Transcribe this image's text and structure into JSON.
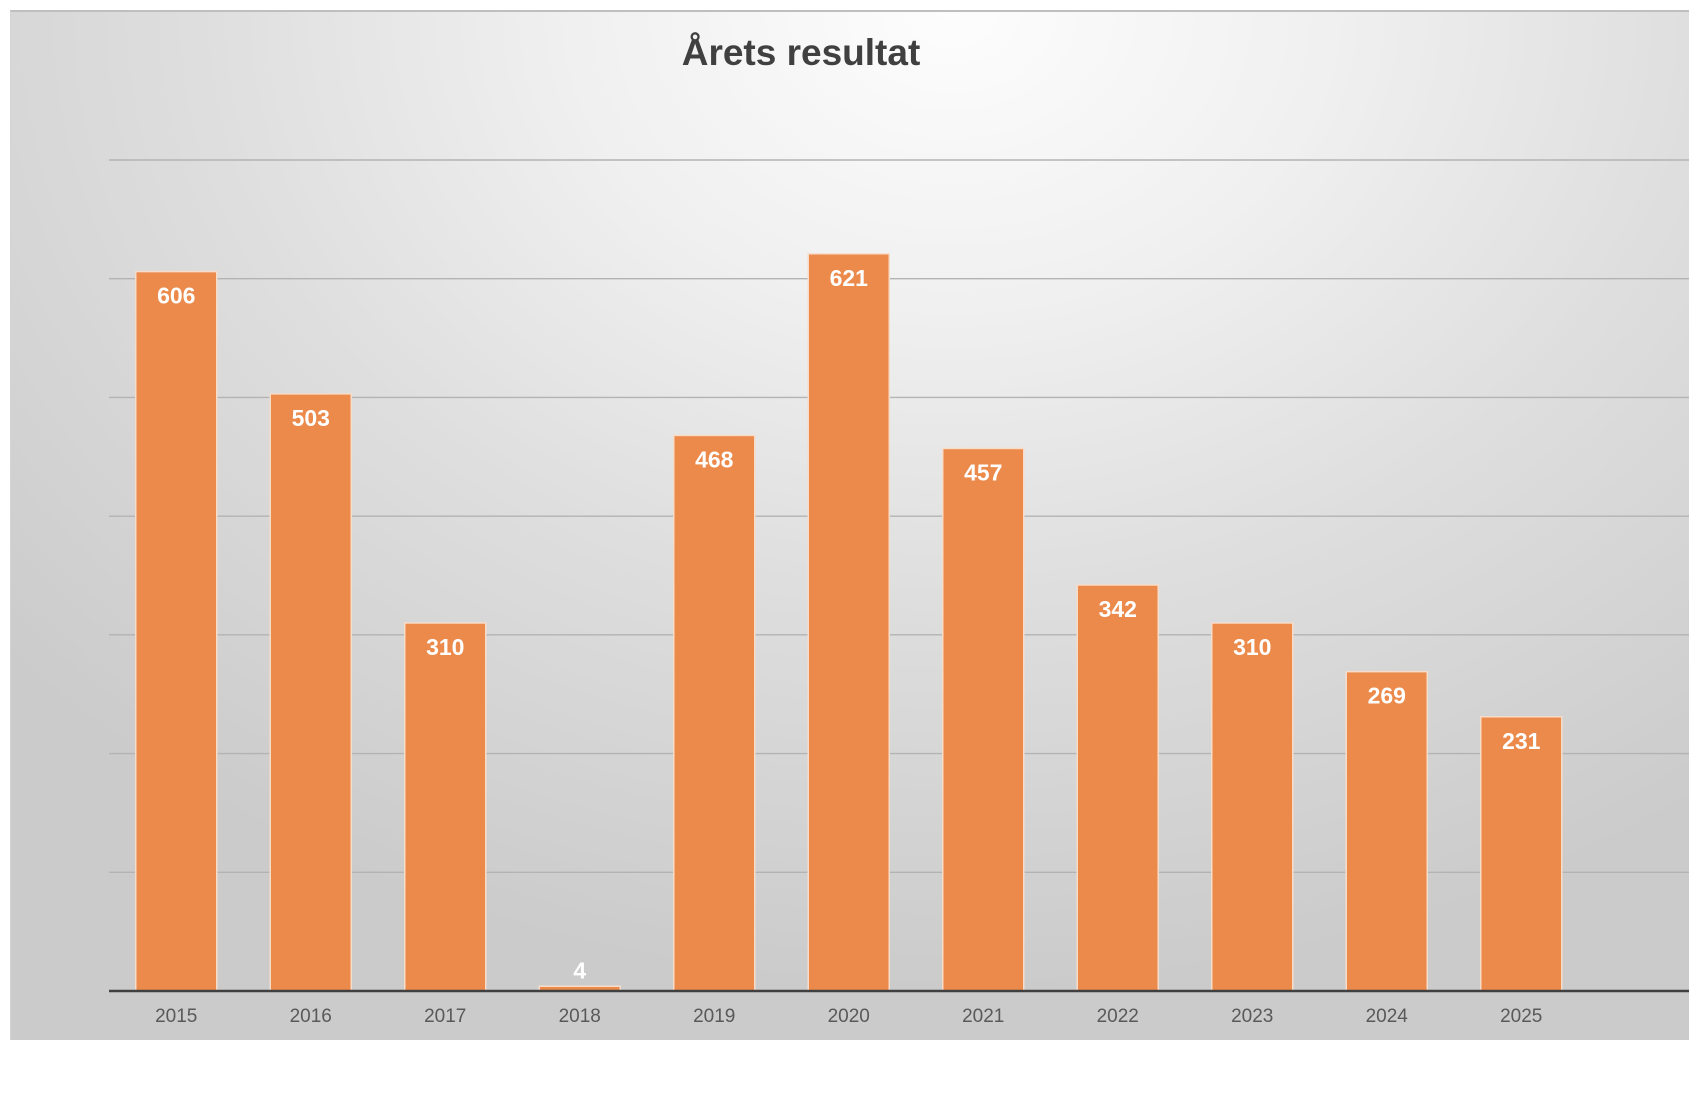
{
  "chart_data": {
    "type": "bar",
    "title": "Årets resultat",
    "xlabel": "",
    "ylabel": "",
    "categories": [
      "2015",
      "2016",
      "2017",
      "2018",
      "2019",
      "2020",
      "2021",
      "2022",
      "2023",
      "2024",
      "2025"
    ],
    "values": [
      606,
      503,
      310,
      4,
      468,
      621,
      457,
      342,
      310,
      269,
      231
    ],
    "data_labels": [
      "606",
      "503",
      "310",
      "4",
      "468",
      "621",
      "457",
      "342",
      "310",
      "269",
      "231"
    ],
    "ylim": [
      0,
      700
    ],
    "y_major_unit": 100,
    "y_tick_labels_visible": false,
    "grid": true,
    "legend": "none",
    "bar_color": "#EB8A4B",
    "bar_outline_color": "#F7DCC9",
    "label_color": "#FFFFFF",
    "small_label_color": "#F2F2F2",
    "title_color": "#404040",
    "tick_label_color": "#595959",
    "background": "gray radial gradient"
  }
}
